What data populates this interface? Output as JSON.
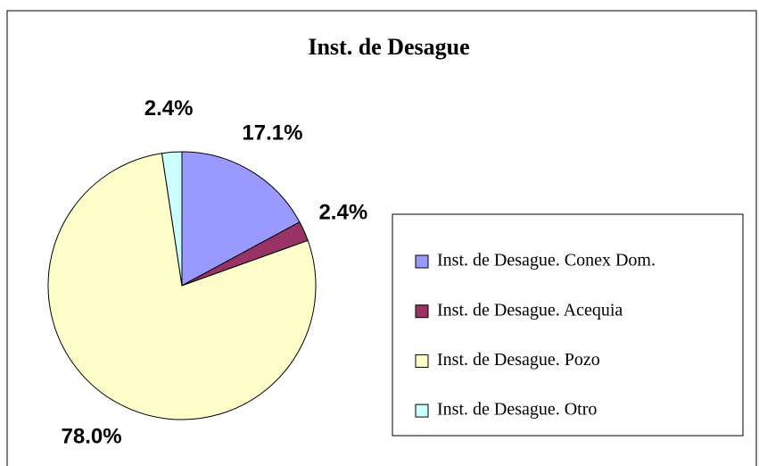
{
  "chart_data": {
    "type": "pie",
    "title": "Inst. de Desague",
    "categories": [
      "Inst. de Desague. Conex Dom.",
      "Inst. de Desague. Acequia",
      "Inst. de Desague. Pozo",
      "Inst. de Desague. Otro"
    ],
    "values": [
      17.1,
      2.4,
      78.0,
      2.4
    ],
    "value_labels": [
      "17.1%",
      "2.4%",
      "78.0%",
      "2.4%"
    ],
    "colors": [
      "#9999ff",
      "#993366",
      "#ffffcc",
      "#ccffff"
    ],
    "legend": "right"
  }
}
